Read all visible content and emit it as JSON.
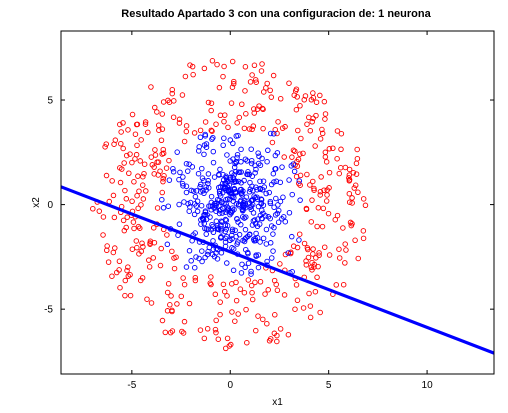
{
  "chart_data": {
    "type": "scatter",
    "title": "Resultado Apartado 3 con una configuracion de: 1 neurona",
    "xlabel": "x1",
    "ylabel": "x2",
    "xlim": [
      -8.6,
      13.4
    ],
    "ylim": [
      -8.1,
      8.3
    ],
    "xticks": [
      -5,
      0,
      5,
      10
    ],
    "xtick_labels": [
      "-5",
      "0",
      "5",
      "10"
    ],
    "yticks": [
      -5,
      0,
      5
    ],
    "ytick_labels": [
      "-5",
      "0",
      "5"
    ],
    "grid": false,
    "legend": "none",
    "series": [
      {
        "kind": "scatter",
        "marker": "circle-open",
        "color": "#ff0000",
        "distribution": "ring",
        "center": [
          0,
          0
        ],
        "radius_range": [
          3.5,
          7
        ],
        "count": 450
      },
      {
        "kind": "scatter",
        "marker": "circle-open",
        "color": "#0000ff",
        "distribution": "gaussian",
        "center": [
          0,
          0
        ],
        "std": [
          1.4,
          1.5
        ],
        "count": 450
      },
      {
        "kind": "line",
        "color": "#0000ff",
        "points": [
          [
            -8.6,
            0.85
          ],
          [
            13.4,
            -7.1
          ]
        ]
      }
    ]
  }
}
